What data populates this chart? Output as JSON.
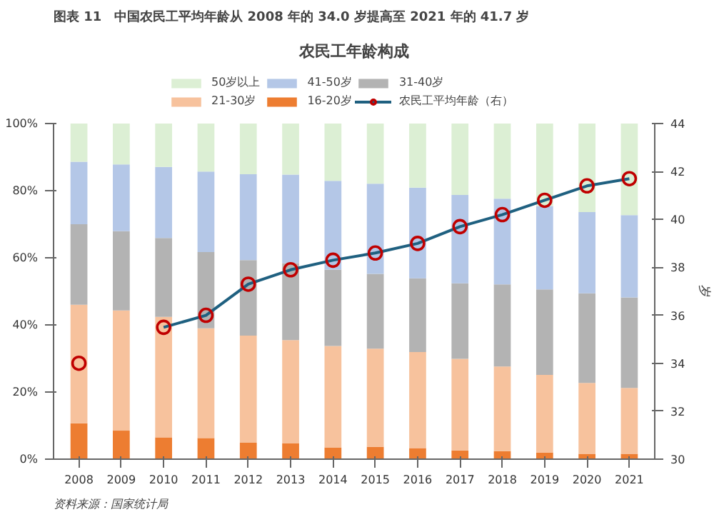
{
  "chart_data": {
    "type": "bar",
    "stacked": true,
    "title": "图表 11　中国农民工平均年龄从 2008 年的 34.0 岁提高至 2021 年的 41.7 岁",
    "subtitle": "农民工年龄构成",
    "y2label": "岁",
    "annotations": [
      "资料来源：国家统计局"
    ],
    "categories": [
      "2008",
      "2009",
      "2010",
      "2011",
      "2012",
      "2013",
      "2014",
      "2015",
      "2016",
      "2017",
      "2018",
      "2019",
      "2020",
      "2021"
    ],
    "series": [
      {
        "name": "16-20岁",
        "color": "#ed7d31",
        "values": [
          10.7,
          8.5,
          6.5,
          6.3,
          4.9,
          4.7,
          3.5,
          3.7,
          3.3,
          2.6,
          2.4,
          2.0,
          1.6,
          1.6
        ]
      },
      {
        "name": "21-30岁",
        "color": "#f7c29d",
        "values": [
          35.3,
          35.8,
          35.9,
          32.7,
          31.9,
          30.8,
          30.2,
          29.2,
          28.6,
          27.3,
          25.2,
          23.1,
          21.1,
          19.6
        ]
      },
      {
        "name": "31-40岁",
        "color": "#b3b3b3",
        "values": [
          24.0,
          23.6,
          23.5,
          22.7,
          22.5,
          22.9,
          22.8,
          22.3,
          22.0,
          22.5,
          24.5,
          25.5,
          26.7,
          27.0
        ]
      },
      {
        "name": "41-50岁",
        "color": "#b4c7e7",
        "values": [
          18.6,
          19.9,
          21.2,
          24.0,
          25.6,
          26.4,
          26.4,
          26.9,
          27.0,
          26.3,
          25.5,
          24.8,
          24.2,
          24.5
        ]
      },
      {
        "name": "50岁以上",
        "color": "#dcefd4",
        "values": [
          11.4,
          12.2,
          12.9,
          14.3,
          15.1,
          15.2,
          17.1,
          17.9,
          19.1,
          21.3,
          22.4,
          24.6,
          26.4,
          27.3
        ]
      },
      {
        "name": "农民工平均年龄（右）",
        "type": "line",
        "axis": "y2",
        "color": "#1f6080",
        "values": [
          null,
          null,
          35.5,
          36.0,
          37.3,
          37.9,
          38.3,
          38.6,
          39.0,
          39.7,
          40.2,
          40.8,
          41.4,
          41.7
        ]
      },
      {
        "type": "scatter",
        "axis": "y2",
        "color": "#c00000",
        "marker": "circle",
        "values": [
          34.0,
          null,
          35.5,
          36.0,
          37.3,
          37.9,
          38.3,
          38.6,
          39.0,
          39.7,
          40.2,
          40.8,
          41.4,
          41.7
        ]
      }
    ],
    "ylim": [
      0,
      100
    ],
    "yticks": [
      {
        "value": 0,
        "label": "0%"
      },
      {
        "value": 20,
        "label": "20%"
      },
      {
        "value": 40,
        "label": "40%"
      },
      {
        "value": 60,
        "label": "60%"
      },
      {
        "value": 80,
        "label": "80%"
      },
      {
        "value": 100,
        "label": "100%"
      }
    ],
    "y2lim": [
      30,
      44
    ],
    "y2ticks": [
      30,
      32,
      34,
      36,
      38,
      40,
      42,
      44
    ],
    "legend": "top",
    "grid": false
  }
}
